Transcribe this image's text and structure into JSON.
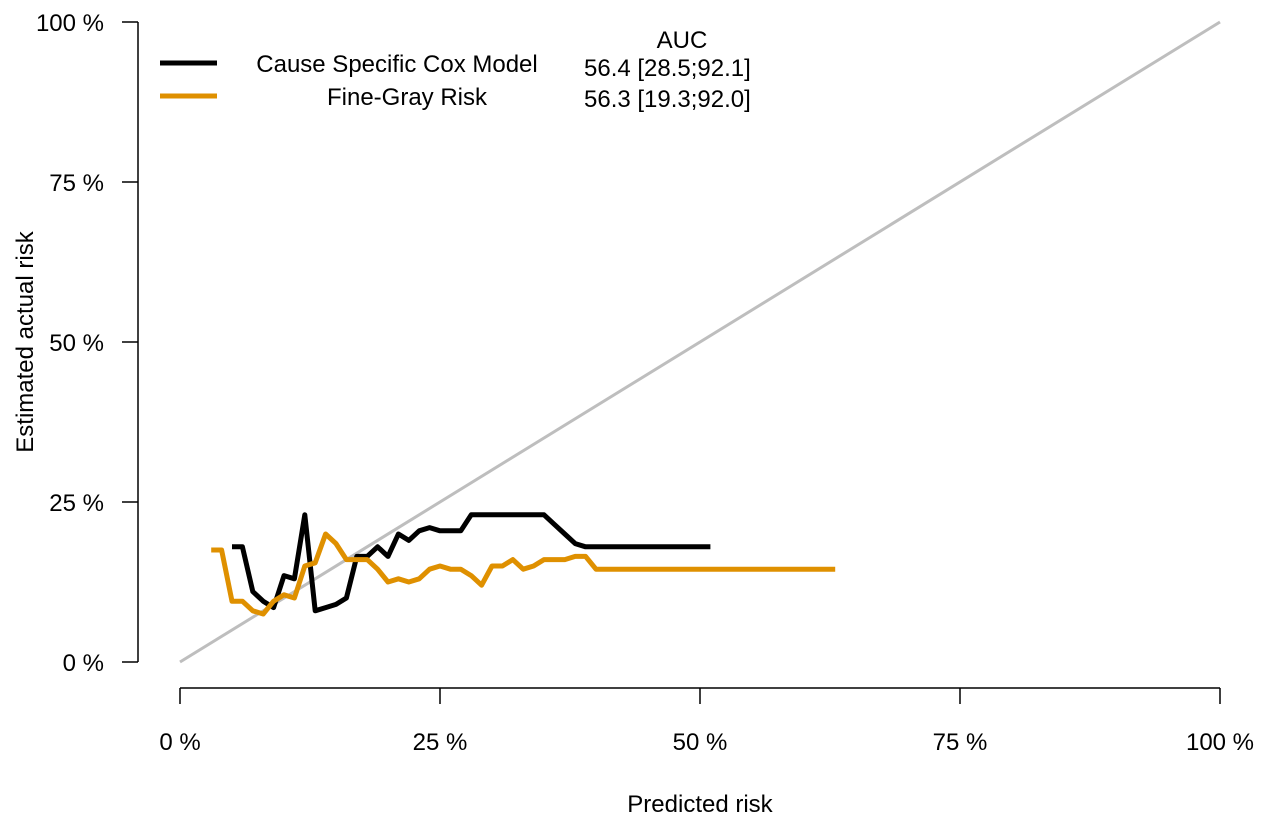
{
  "chart_data": {
    "type": "line",
    "title": "",
    "xlabel": "Predicted risk",
    "ylabel": "Estimated actual risk",
    "xlim": [
      0,
      100
    ],
    "ylim": [
      0,
      100
    ],
    "x_ticks": [
      0,
      25,
      50,
      75,
      100
    ],
    "y_ticks": [
      0,
      25,
      50,
      75,
      100
    ],
    "x_tick_labels": [
      "0 %",
      "25 %",
      "50 %",
      "75 %",
      "100 %"
    ],
    "y_tick_labels": [
      "0 %",
      "25 %",
      "50 %",
      "75 %",
      "100 %"
    ],
    "grid": false,
    "legend_position": "top-left",
    "legend_header": "AUC",
    "reference_line": {
      "x": [
        0,
        100
      ],
      "y": [
        0,
        100
      ],
      "color": "#bebebe"
    },
    "series": [
      {
        "name": "Cause Specific Cox Model",
        "auc": "56.4 [28.5;92.1]",
        "color": "#000000",
        "x": [
          5,
          6,
          7,
          8,
          9,
          10,
          11,
          12,
          13,
          14,
          15,
          16,
          17,
          18,
          19,
          20,
          21,
          22,
          23,
          24,
          25,
          26,
          27,
          28,
          29,
          30,
          31,
          32,
          33,
          34,
          35,
          36,
          37,
          38,
          39,
          40,
          42,
          45,
          48,
          51
        ],
        "y": [
          18,
          18,
          11,
          9.5,
          8.5,
          13.5,
          13,
          23,
          8,
          8.5,
          9,
          10,
          16.5,
          16.5,
          18,
          16.5,
          20,
          19,
          20.5,
          21,
          20.5,
          20.5,
          20.5,
          23,
          23,
          23,
          23,
          23,
          23,
          23,
          23,
          21.5,
          20,
          18.5,
          18,
          18,
          18,
          18,
          18,
          18
        ]
      },
      {
        "name": "Fine-Gray Risk",
        "auc": "56.3 [19.3;92.0]",
        "color": "#df9000",
        "x": [
          3,
          4,
          5,
          6,
          7,
          8,
          9,
          10,
          11,
          12,
          13,
          14,
          15,
          16,
          17,
          18,
          19,
          20,
          21,
          22,
          23,
          24,
          25,
          26,
          27,
          28,
          29,
          30,
          31,
          32,
          33,
          34,
          35,
          36,
          37,
          38,
          39,
          40,
          45,
          50,
          55,
          60,
          63
        ],
        "y": [
          17.5,
          17.5,
          9.5,
          9.5,
          8,
          7.5,
          9.5,
          10.5,
          10,
          15,
          15.5,
          20,
          18.5,
          16,
          16,
          16,
          14.5,
          12.5,
          13,
          12.5,
          13,
          14.5,
          15,
          14.5,
          14.5,
          13.5,
          12,
          15,
          15,
          16,
          14.5,
          15,
          16,
          16,
          16,
          16.5,
          16.5,
          14.5,
          14.5,
          14.5,
          14.5,
          14.5,
          14.5
        ]
      }
    ]
  }
}
